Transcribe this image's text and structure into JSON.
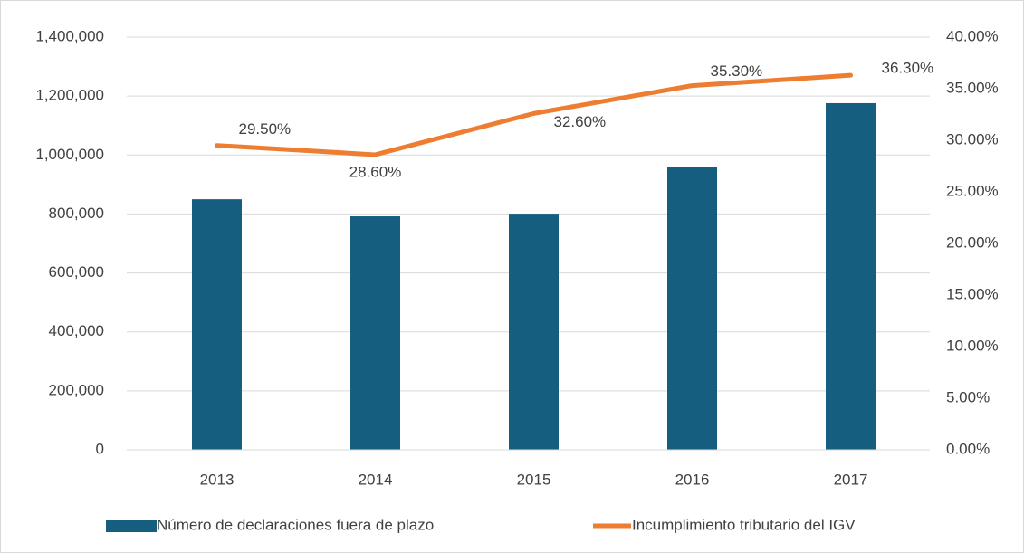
{
  "chart_data": {
    "type": "bar_line",
    "categories": [
      "2013",
      "2014",
      "2015",
      "2016",
      "2017"
    ],
    "series": [
      {
        "name": "Número de declaraciones fuera de plazo",
        "type": "bar",
        "color": "#165e80",
        "values": [
          850000,
          792000,
          801000,
          958000,
          1176000
        ]
      },
      {
        "name": "Incumplimiento tributario del IGV",
        "type": "line",
        "axis": "y2",
        "color": "#ed7d31",
        "values": [
          29.5,
          28.6,
          32.6,
          35.3,
          36.3
        ],
        "value_labels": [
          "29.50%",
          "28.60%",
          "32.60%",
          "35.30%",
          "36.30%"
        ]
      }
    ],
    "ylim": [
      0,
      1400000
    ],
    "yticks": [
      0,
      {
        "value": 200000,
        "label": "200,000"
      },
      {
        "value": 400000,
        "label": "400,000"
      },
      {
        "value": 600000,
        "label": "600,000"
      },
      {
        "value": 800000,
        "label": "800,000"
      },
      {
        "value": 1000000,
        "label": "1,000,000"
      },
      {
        "value": 1200000,
        "label": "1,200,000"
      },
      {
        "value": 1400000,
        "label": "1,400,000"
      }
    ],
    "y2lim": [
      0,
      40
    ],
    "y2ticks": [
      {
        "value": 0,
        "label": "0.00%"
      },
      {
        "value": 5,
        "label": "5.00%"
      },
      {
        "value": 10,
        "label": "10.00%"
      },
      {
        "value": 15,
        "label": "15.00%"
      },
      {
        "value": 20,
        "label": "20.00%"
      },
      {
        "value": 25,
        "label": "25.00%"
      },
      {
        "value": 30,
        "label": "30.00%"
      },
      {
        "value": 35,
        "label": "35.00%"
      },
      {
        "value": 40,
        "label": "40.00%"
      }
    ],
    "grid": true,
    "legend": "bottom"
  }
}
